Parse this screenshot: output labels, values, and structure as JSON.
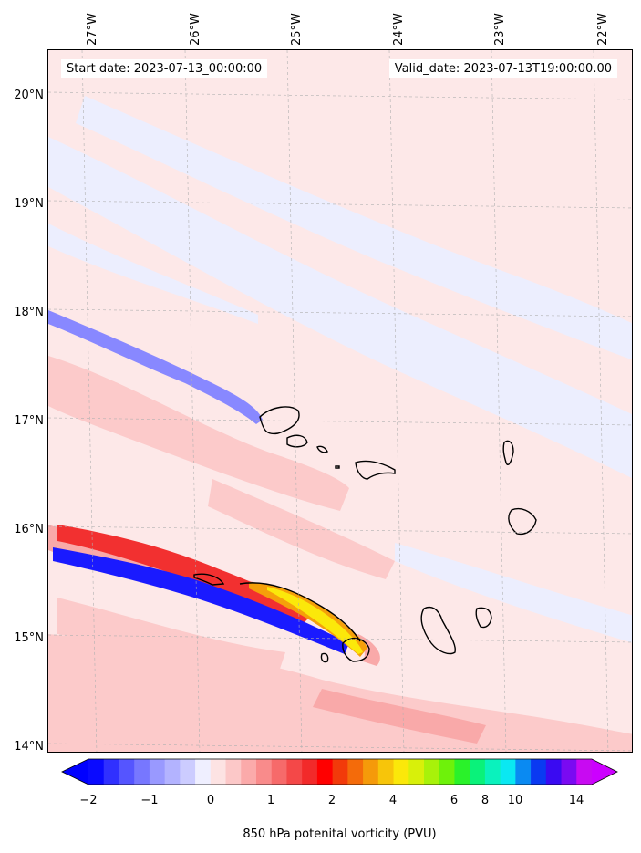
{
  "header": {
    "start_label": "Start date: 2023-07-13_00:00:00",
    "valid_label": "Valid_date: 2023-07-13T19:00:00.00"
  },
  "map": {
    "lat_labels": [
      "20°N",
      "19°N",
      "18°N",
      "17°N",
      "16°N",
      "15°N",
      "14°N"
    ],
    "lon_labels": [
      "27°W",
      "26°W",
      "25°W",
      "24°W",
      "23°W",
      "22°W"
    ],
    "lat_range": [
      13.95,
      20.45
    ],
    "lon_range": [
      -27.3,
      -21.6
    ],
    "gridlines": true,
    "background_color": "#fde8e8"
  },
  "colorbar": {
    "title": "850 hPa potenital vorticity (PVU)",
    "tick_labels": [
      "−2",
      "−1",
      "0",
      "1",
      "2",
      "4",
      "6",
      "8",
      "10",
      "14"
    ],
    "colors": [
      "#0a0aff",
      "#3030ff",
      "#5555ff",
      "#7777ff",
      "#9999ff",
      "#b3b3ff",
      "#ccccff",
      "#efefff",
      "#fde3e3",
      "#fcc8c8",
      "#fbaaaa",
      "#f98b8b",
      "#f66a6a",
      "#f44848",
      "#f22a2a",
      "#ff0000",
      "#f23a0a",
      "#f46b0a",
      "#f59a0a",
      "#f7c50a",
      "#fbe80a",
      "#d8f00a",
      "#a8f20a",
      "#6ef20a",
      "#2af22a",
      "#0af27a",
      "#0af2bd",
      "#0ae8f2",
      "#0a8af2",
      "#0a3af2",
      "#3a0af2",
      "#7a0af2",
      "#c80af2"
    ],
    "extend": "both"
  }
}
